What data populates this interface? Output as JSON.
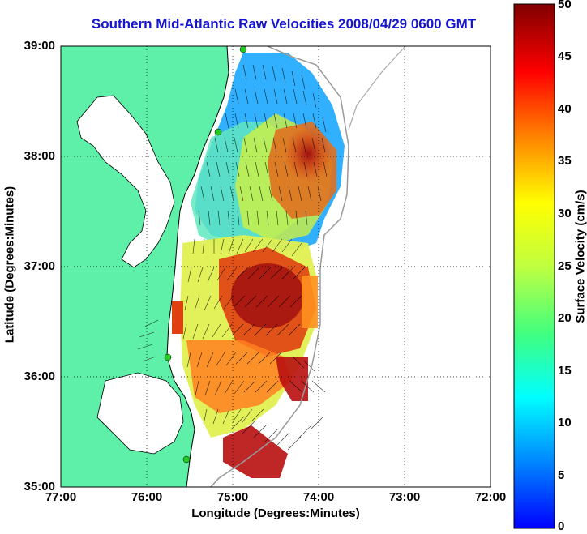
{
  "title": "Southern Mid-Atlantic Raw Velocities 2008/04/29 0600 GMT",
  "x_axis": {
    "label": "Longitude (Degrees:Minutes)",
    "ticks": [
      "77:00",
      "76:00",
      "75:00",
      "74:00",
      "73:00",
      "72:00"
    ]
  },
  "y_axis": {
    "label": "Latitude (Degrees:Minutes)",
    "ticks": [
      "39:00",
      "38:00",
      "37:00",
      "36:00",
      "35:00"
    ]
  },
  "colorbar": {
    "label": "Surface Velocity (cm/s)",
    "ticks": [
      "50",
      "45",
      "40",
      "35",
      "30",
      "25",
      "20",
      "15",
      "10",
      "5",
      "0"
    ],
    "range": [
      0,
      50
    ],
    "colormap": "jet"
  },
  "colors": {
    "title": "#1515d0",
    "land": "#5ef0a8",
    "coastline": "#000000",
    "bathymetry": "#999999",
    "stations": "#22cc22"
  },
  "map": {
    "lon_range": [
      -77,
      -72
    ],
    "lat_range": [
      35,
      39
    ],
    "grid": "dotted"
  }
}
